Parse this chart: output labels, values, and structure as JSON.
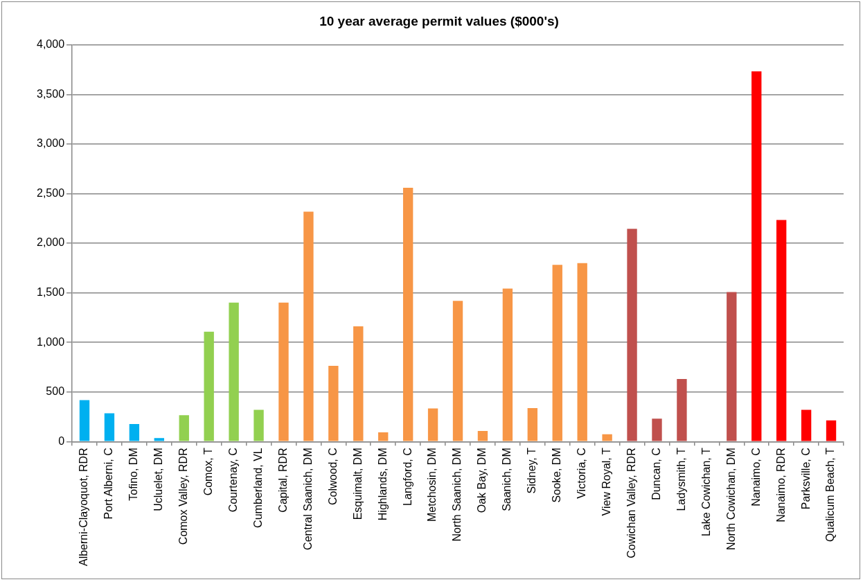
{
  "chart_data": {
    "type": "bar",
    "title": "10 year average permit values ($000's)",
    "categories": [
      "Alberni-Clayoquot, RDR",
      "Port Alberni, C",
      "Tofino, DM",
      "Ucluelet, DM",
      "Comox Valley, RDR",
      "Comox, T",
      "Courtenay, C",
      "Cumberland, VL",
      "Capital, RDR",
      "Central Saanich, DM",
      "Colwood, C",
      "Esquimalt, DM",
      "Highlands, DM",
      "Langford, C",
      "Metchosin, DM",
      "North Saanich, DM",
      "Oak Bay, DM",
      "Saanich, DM",
      "Sidney, T",
      "Sooke, DM",
      "Victoria, C",
      "View Royal, T",
      "Cowichan Valley, RDR",
      "Duncan, C",
      "Ladysmith, T",
      "Lake Cowichan, T",
      "North Cowichan, DM",
      "Nanaimo, C",
      "Nanaimo, RDR",
      "Parksville, C",
      "Qualicum Beach, T"
    ],
    "values": [
      417,
      284,
      177,
      35,
      266,
      1108,
      1401,
      319,
      1401,
      2318,
      763,
      1162,
      92,
      2560,
      334,
      1419,
      106,
      1543,
      337,
      1782,
      1800,
      74,
      2146,
      231,
      630,
      0,
      1508,
      3733,
      2235,
      319,
      213
    ],
    "colors": [
      "#00b0f0",
      "#00b0f0",
      "#00b0f0",
      "#00b0f0",
      "#92d050",
      "#92d050",
      "#92d050",
      "#92d050",
      "#f79646",
      "#f79646",
      "#f79646",
      "#f79646",
      "#f79646",
      "#f79646",
      "#f79646",
      "#f79646",
      "#f79646",
      "#f79646",
      "#f79646",
      "#f79646",
      "#f79646",
      "#f79646",
      "#c0504d",
      "#c0504d",
      "#c0504d",
      "#c0504d",
      "#c0504d",
      "#ff0000",
      "#ff0000",
      "#ff0000",
      "#ff0000"
    ],
    "ylim": [
      0,
      4000
    ],
    "yticks": [
      {
        "value": 0,
        "label": "0"
      },
      {
        "value": 500,
        "label": "500"
      },
      {
        "value": 1000,
        "label": "1,000"
      },
      {
        "value": 1500,
        "label": "1,500"
      },
      {
        "value": 2000,
        "label": "2,000"
      },
      {
        "value": 2500,
        "label": "2,500"
      },
      {
        "value": 3000,
        "label": "3,000"
      },
      {
        "value": 3500,
        "label": "3,500"
      },
      {
        "value": 4000,
        "label": "4,000"
      }
    ],
    "grid": "y",
    "legend": false
  }
}
